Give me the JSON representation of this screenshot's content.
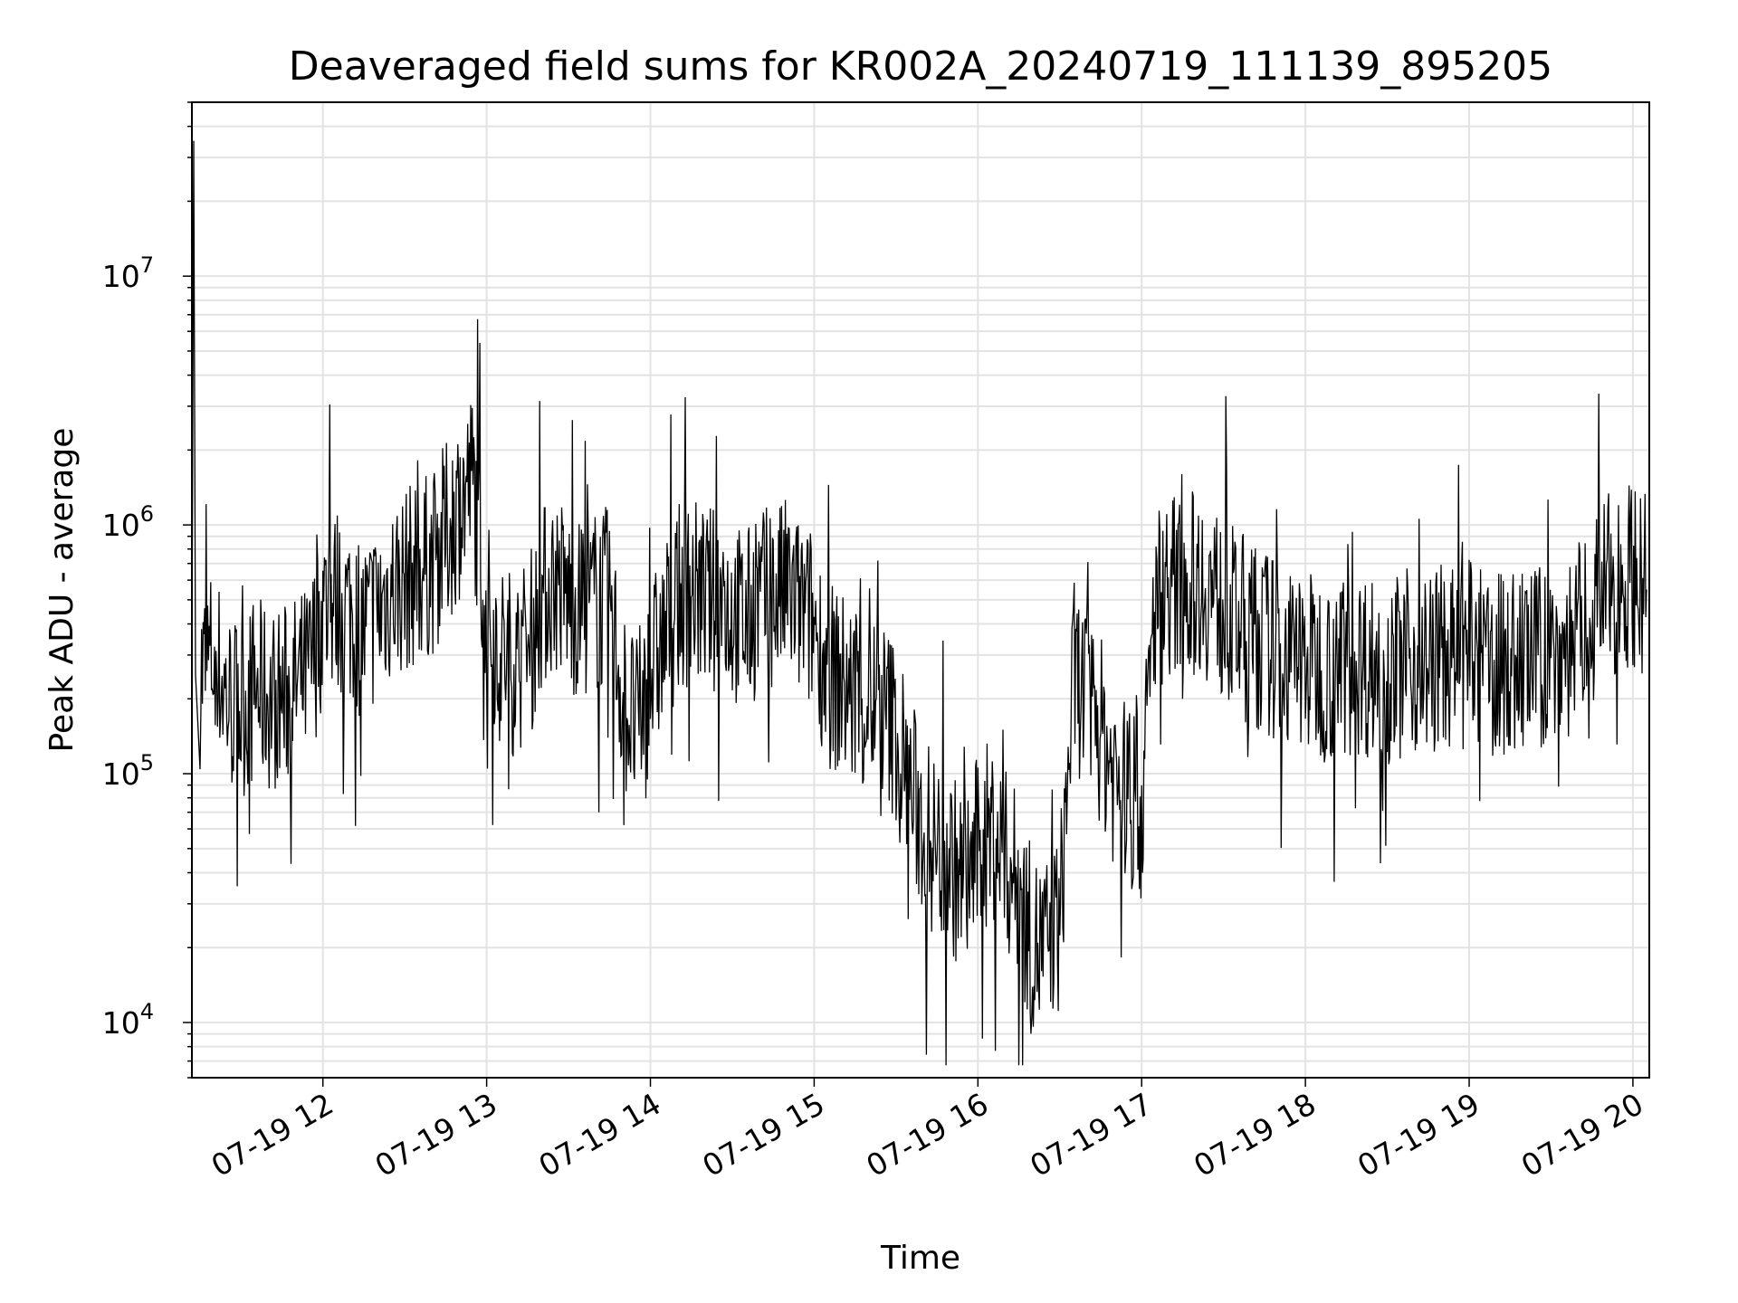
{
  "chart_data": {
    "type": "line",
    "title": "Deaveraged field sums for KR002A_20240719_111139_895205",
    "xlabel": "Time",
    "ylabel": "Peak ADU - average",
    "y_scale": "log",
    "xlim": [
      "07-19 11:12",
      "07-19 20:06"
    ],
    "ylim": [
      6000,
      50000000
    ],
    "grid": true,
    "line_color": "#000000",
    "x_ticks": [
      "07-19 12",
      "07-19 13",
      "07-19 14",
      "07-19 15",
      "07-19 16",
      "07-19 17",
      "07-19 18",
      "07-19 19",
      "07-19 20"
    ],
    "y_ticks": [
      {
        "base": "10",
        "exp": "4",
        "value": 10000
      },
      {
        "base": "10",
        "exp": "5",
        "value": 100000
      },
      {
        "base": "10",
        "exp": "6",
        "value": 1000000
      },
      {
        "base": "10",
        "exp": "7",
        "value": 10000000
      }
    ],
    "series": [
      {
        "x": [
          "07-19 11:12",
          "07-19 11:15",
          "07-19 11:20",
          "07-19 11:25",
          "07-19 11:30",
          "07-19 11:35",
          "07-19 11:40",
          "07-19 11:45",
          "07-19 11:50",
          "07-19 11:55",
          "07-19 12:00",
          "07-19 12:05",
          "07-19 12:10",
          "07-19 12:15",
          "07-19 12:20",
          "07-19 12:25",
          "07-19 12:30",
          "07-19 12:35",
          "07-19 12:40",
          "07-19 12:45",
          "07-19 12:50",
          "07-19 12:55",
          "07-19 13:00",
          "07-19 13:05",
          "07-19 13:10",
          "07-19 13:15",
          "07-19 13:20",
          "07-19 13:25",
          "07-19 13:30",
          "07-19 13:35",
          "07-19 13:40",
          "07-19 13:45",
          "07-19 13:50",
          "07-19 13:55",
          "07-19 14:00",
          "07-19 14:05",
          "07-19 14:10",
          "07-19 14:15",
          "07-19 14:20",
          "07-19 14:25",
          "07-19 14:30",
          "07-19 14:35",
          "07-19 14:40",
          "07-19 14:45",
          "07-19 14:50",
          "07-19 14:55",
          "07-19 15:00",
          "07-19 15:05",
          "07-19 15:10",
          "07-19 15:15",
          "07-19 15:20",
          "07-19 15:25",
          "07-19 15:30",
          "07-19 15:35",
          "07-19 15:40",
          "07-19 15:45",
          "07-19 15:50",
          "07-19 15:55",
          "07-19 16:00",
          "07-19 16:05",
          "07-19 16:10",
          "07-19 16:15",
          "07-19 16:20",
          "07-19 16:25",
          "07-19 16:30",
          "07-19 16:35",
          "07-19 16:40",
          "07-19 16:45",
          "07-19 16:50",
          "07-19 16:55",
          "07-19 17:00",
          "07-19 17:05",
          "07-19 17:10",
          "07-19 17:15",
          "07-19 17:20",
          "07-19 17:25",
          "07-19 17:30",
          "07-19 17:35",
          "07-19 17:40",
          "07-19 17:45",
          "07-19 17:50",
          "07-19 17:55",
          "07-19 18:00",
          "07-19 18:05",
          "07-19 18:10",
          "07-19 18:15",
          "07-19 18:20",
          "07-19 18:25",
          "07-19 18:30",
          "07-19 18:35",
          "07-19 18:40",
          "07-19 18:45",
          "07-19 18:50",
          "07-19 18:55",
          "07-19 19:00",
          "07-19 19:05",
          "07-19 19:10",
          "07-19 19:15",
          "07-19 19:20",
          "07-19 19:25",
          "07-19 19:30",
          "07-19 19:35",
          "07-19 19:40",
          "07-19 19:45",
          "07-19 19:50",
          "07-19 19:55",
          "07-19 20:00",
          "07-19 20:05"
        ],
        "y": [
          35000000,
          250000,
          300000,
          200000,
          180000,
          220000,
          200000,
          200000,
          220000,
          250000,
          450000,
          500000,
          450000,
          380000,
          450000,
          550000,
          600000,
          650000,
          700000,
          900000,
          1200000,
          1500000,
          450000,
          300000,
          280000,
          300000,
          500000,
          600000,
          500000,
          450000,
          500000,
          500000,
          200000,
          150000,
          250000,
          350000,
          500000,
          550000,
          500000,
          500000,
          450000,
          400000,
          500000,
          500000,
          550000,
          450000,
          400000,
          250000,
          230000,
          200000,
          200000,
          180000,
          150000,
          90000,
          60000,
          50000,
          45000,
          35000,
          50000,
          60000,
          45000,
          35000,
          20000,
          20000,
          25000,
          250000,
          200000,
          150000,
          100000,
          80000,
          70000,
          500000,
          600000,
          550000,
          600000,
          550000,
          450000,
          400000,
          350000,
          350000,
          300000,
          280000,
          280000,
          270000,
          260000,
          280000,
          280000,
          270000,
          260000,
          270000,
          280000,
          280000,
          300000,
          280000,
          300000,
          280000,
          270000,
          280000,
          280000,
          290000,
          300000,
          320000,
          350000,
          450000,
          550000,
          600000,
          650000,
          550000
        ]
      }
    ]
  }
}
